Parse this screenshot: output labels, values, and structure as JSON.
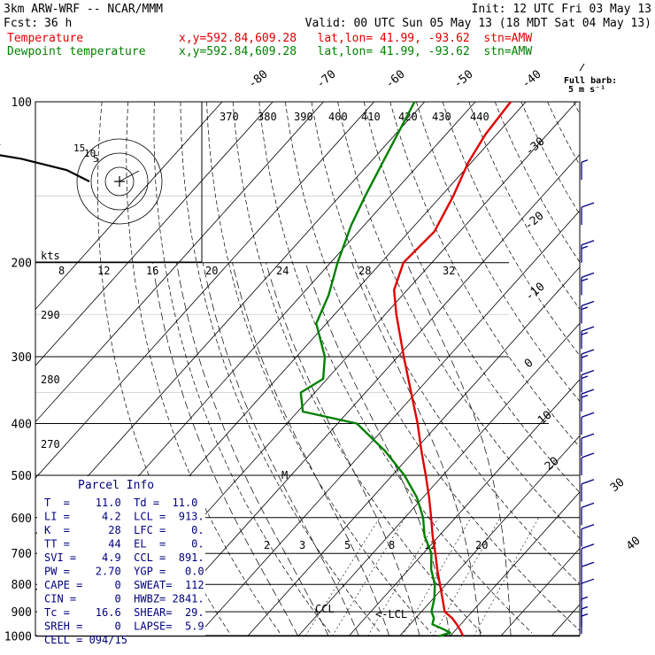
{
  "header": {
    "model": "3km ARW-WRF -- NCAR/MMM",
    "init": "Init: 12 UTC Fri 03 May 13",
    "fcst_label": "Fcst:",
    "fcst_value": "36 h",
    "valid": "Valid: 00 UTC Sun 05 May 13 (18 MDT Sat 04 May 13)"
  },
  "legend": [
    {
      "name": "Temperature",
      "info": "x,y=592.84,609.28   lat,lon= 41.99, -93.62  stn=AMW",
      "color": "#e00000"
    },
    {
      "name": "Dewpoint temperature",
      "info": "x,y=592.84,609.28   lat,lon= 41.99, -93.62  stn=AMW",
      "color": "#008000"
    }
  ],
  "full_barb_label": [
    "Full barb:",
    "5 m s⁻¹"
  ],
  "chart_data": {
    "type": "line",
    "pressure_levels": [
      "100",
      "200",
      "300",
      "400",
      "500",
      "600",
      "700",
      "800",
      "900",
      "1000"
    ],
    "top_isotherm_labels": [
      "-80",
      "-70",
      "-60",
      "-50",
      "-40"
    ],
    "right_isotherm_labels": [
      "-30",
      "-20",
      "-10",
      "0",
      "10",
      "20",
      "30",
      "40"
    ],
    "theta_labels": [
      "370",
      "380",
      "390",
      "400",
      "410",
      "420",
      "430",
      "440"
    ],
    "mixing_ratio_labels": [
      "8",
      "12",
      "16",
      "20",
      "24",
      "28",
      "32"
    ],
    "mixing_ratio_low_labels": [
      "2",
      "3",
      "5",
      "8",
      "12",
      "20"
    ],
    "left_theta_labels": [
      "290",
      "280",
      "270"
    ],
    "kts_label": "kts",
    "hodograph_ring_labels": [
      "5",
      "10",
      "15"
    ],
    "markers": {
      "lcl": "<-LCL",
      "ccl": "CCL",
      "lfc": "M"
    },
    "series": [
      {
        "name": "Temperature",
        "color": "#e00000",
        "points": [
          [
            1000,
            22.6
          ],
          [
            975,
            21.0
          ],
          [
            950,
            19.2
          ],
          [
            925,
            17.2
          ],
          [
            900,
            14.6
          ],
          [
            850,
            11.8
          ],
          [
            800,
            8.8
          ],
          [
            750,
            5.6
          ],
          [
            700,
            2.4
          ],
          [
            650,
            -1.2
          ],
          [
            600,
            -4.8
          ],
          [
            550,
            -8.8
          ],
          [
            500,
            -13.4
          ],
          [
            450,
            -18.6
          ],
          [
            400,
            -24.2
          ],
          [
            350,
            -31.0
          ],
          [
            300,
            -38.8
          ],
          [
            250,
            -47.8
          ],
          [
            225,
            -52.6
          ],
          [
            200,
            -55.6
          ],
          [
            175,
            -55.0
          ],
          [
            150,
            -57.6
          ],
          [
            130,
            -60.6
          ],
          [
            115,
            -62.2
          ],
          [
            100,
            -63.0
          ]
        ]
      },
      {
        "name": "Dewpoint temperature",
        "color": "#008000",
        "points": [
          [
            1000,
            17.8
          ],
          [
            985,
            19.4
          ],
          [
            970,
            17.4
          ],
          [
            950,
            14.4
          ],
          [
            925,
            13.6
          ],
          [
            900,
            12.0
          ],
          [
            850,
            10.2
          ],
          [
            800,
            7.8
          ],
          [
            750,
            4.4
          ],
          [
            700,
            1.6
          ],
          [
            650,
            -2.8
          ],
          [
            600,
            -6.4
          ],
          [
            550,
            -11.2
          ],
          [
            500,
            -17.6
          ],
          [
            450,
            -25.8
          ],
          [
            400,
            -36.2
          ],
          [
            380,
            -49.0
          ],
          [
            350,
            -52.8
          ],
          [
            330,
            -50.8
          ],
          [
            300,
            -54.4
          ],
          [
            260,
            -62.0
          ],
          [
            230,
            -64.6
          ],
          [
            200,
            -68.6
          ],
          [
            170,
            -72.6
          ],
          [
            150,
            -75.0
          ],
          [
            130,
            -77.5
          ],
          [
            100,
            -82.0
          ]
        ]
      }
    ],
    "parcel_info": {
      "title": "Parcel Info",
      "rows": [
        "T  =    11.0  Td =  11.0",
        "LI =     4.2  LCL =  913.",
        "K  =      28  LFC =    0.",
        "TT =      44  EL  =    0.",
        "SVI =    4.9  CCL =  891.",
        "PW =    2.70  YGP =   0.0",
        "CAPE =     0  SWEAT=  112",
        "CIN =      0  HWBZ= 2841.",
        "Tc =    16.6  SHEAR=  29.",
        "SREH =     0  LAPSE=  5.9",
        "CELL = 094/15"
      ]
    },
    "hodograph": [
      [
        0,
        0
      ],
      [
        -2,
        -4
      ],
      [
        -6,
        -8
      ],
      [
        -9,
        -10
      ],
      [
        -8,
        -13
      ],
      [
        -10,
        -16
      ],
      [
        -11,
        -19
      ],
      [
        -12,
        -24
      ],
      [
        -12,
        -27
      ],
      [
        -13,
        -27
      ]
    ],
    "wind_barbs": [
      {
        "p": 140,
        "speed": 5,
        "dir": 200
      },
      {
        "p": 170,
        "speed": 10,
        "dir": 210
      },
      {
        "p": 200,
        "speed": 15,
        "dir": 220
      },
      {
        "p": 230,
        "speed": 15,
        "dir": 225
      },
      {
        "p": 260,
        "speed": 15,
        "dir": 225
      },
      {
        "p": 290,
        "speed": 15,
        "dir": 225
      },
      {
        "p": 320,
        "speed": 15,
        "dir": 225
      },
      {
        "p": 350,
        "speed": 15,
        "dir": 230
      },
      {
        "p": 380,
        "speed": 15,
        "dir": 230
      },
      {
        "p": 420,
        "speed": 10,
        "dir": 230
      },
      {
        "p": 460,
        "speed": 10,
        "dir": 230
      },
      {
        "p": 500,
        "speed": 10,
        "dir": 235
      },
      {
        "p": 560,
        "speed": 10,
        "dir": 235
      },
      {
        "p": 620,
        "speed": 10,
        "dir": 235
      },
      {
        "p": 680,
        "speed": 10,
        "dir": 235
      },
      {
        "p": 740,
        "speed": 10,
        "dir": 235
      },
      {
        "p": 800,
        "speed": 10,
        "dir": 240
      },
      {
        "p": 860,
        "speed": 10,
        "dir": 240
      },
      {
        "p": 920,
        "speed": 5,
        "dir": 240
      },
      {
        "p": 960,
        "speed": 5,
        "dir": 245
      },
      {
        "p": 990,
        "speed": 5,
        "dir": 245
      }
    ]
  }
}
